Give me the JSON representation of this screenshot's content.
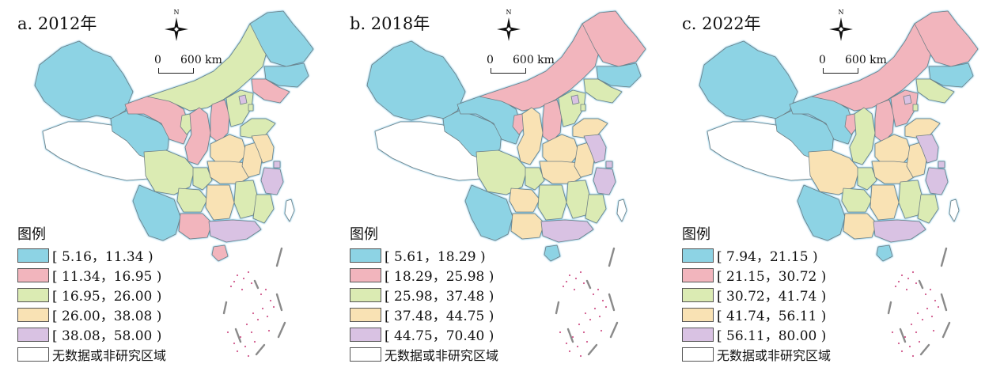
{
  "figure": {
    "legend_title": "图例",
    "no_data_label": "无数据或非研究区域",
    "scale_start": "0",
    "scale_end": "600 km",
    "north_label": "N",
    "class_colors": [
      "#8dd3e4",
      "#f2b5bd",
      "#dbebb3",
      "#f9e2b4",
      "#d9c2e3"
    ],
    "no_data_color": "#ffffff"
  },
  "panels": [
    {
      "title": "a. 2012年",
      "classes": [
        "[ 5.16，11.34 )",
        "[ 11.34，16.95 )",
        "[ 16.95，26.00 )",
        "[ 26.00，38.08 )",
        "[ 38.08，58.00 )"
      ],
      "region_classes": {
        "xinjiang": 0,
        "tibet": -1,
        "qinghai": 0,
        "gansu": 1,
        "innermongolia": 2,
        "heilongjiang": 0,
        "jilin": 0,
        "liaoning": 1,
        "ningxia": 2,
        "shaanxi": 1,
        "shanxi": 1,
        "hebei": 2,
        "beijing": 4,
        "tianjin": 2,
        "shandong": 2,
        "henan": 3,
        "sichuan": 2,
        "chongqing": 2,
        "hubei": 3,
        "anhui": 3,
        "jiangsu": 3,
        "shanghai": 4,
        "zhejiang": 4,
        "yunnan": 0,
        "guizhou": 2,
        "hunan": 3,
        "jiangxi": 2,
        "fujian": 2,
        "guangxi": 1,
        "guangdong": 4,
        "hainan": 1,
        "taiwan": -1
      }
    },
    {
      "title": "b. 2018年",
      "classes": [
        "[ 5.61，18.29 )",
        "[ 18.29，25.98 )",
        "[ 25.98，37.48 )",
        "[ 37.48，44.75 )",
        "[ 44.75，70.40 )"
      ],
      "region_classes": {
        "xinjiang": 0,
        "tibet": -1,
        "qinghai": 0,
        "gansu": 0,
        "innermongolia": 1,
        "heilongjiang": 1,
        "jilin": 0,
        "liaoning": 2,
        "ningxia": 1,
        "shaanxi": 3,
        "shanxi": 1,
        "hebei": 2,
        "beijing": 4,
        "tianjin": 2,
        "shandong": 3,
        "henan": 3,
        "sichuan": 2,
        "chongqing": 2,
        "hubei": 3,
        "anhui": 3,
        "jiangsu": 4,
        "shanghai": 4,
        "zhejiang": 4,
        "yunnan": 0,
        "guizhou": 3,
        "hunan": 2,
        "jiangxi": 2,
        "fujian": 2,
        "guangxi": 3,
        "guangdong": 4,
        "hainan": 0,
        "taiwan": -1
      }
    },
    {
      "title": "c. 2022年",
      "classes": [
        "[ 7.94，21.15 )",
        "[ 21.15，30.72 )",
        "[ 30.72，41.74 )",
        "[ 41.74，56.11 )",
        "[ 56.11，80.00 )"
      ],
      "region_classes": {
        "xinjiang": 0,
        "tibet": -1,
        "qinghai": 0,
        "gansu": 0,
        "innermongolia": 1,
        "heilongjiang": 1,
        "jilin": 0,
        "liaoning": 2,
        "ningxia": 1,
        "shaanxi": 2,
        "shanxi": 1,
        "hebei": 1,
        "beijing": 4,
        "tianjin": 2,
        "shandong": 3,
        "henan": 3,
        "sichuan": 3,
        "chongqing": 2,
        "hubei": 3,
        "anhui": 3,
        "jiangsu": 4,
        "shanghai": 4,
        "zhejiang": 4,
        "yunnan": 0,
        "guizhou": 2,
        "hunan": 3,
        "jiangxi": 2,
        "fujian": 2,
        "guangxi": 3,
        "guangdong": 4,
        "hainan": 0,
        "taiwan": -1
      }
    }
  ]
}
